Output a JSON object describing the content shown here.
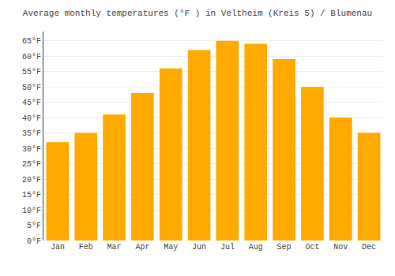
{
  "chart_data": {
    "type": "bar",
    "title": "Average monthly temperatures (°F ) in Veltheim (Kreis 5) / Blumenau",
    "categories": [
      "Jan",
      "Feb",
      "Mar",
      "Apr",
      "May",
      "Jun",
      "Jul",
      "Aug",
      "Sep",
      "Oct",
      "Nov",
      "Dec"
    ],
    "values": [
      32,
      35,
      41,
      48,
      56,
      62,
      65,
      64,
      59,
      50,
      40,
      35
    ],
    "color": "#FFAA00",
    "ylim": [
      0,
      68
    ],
    "yticks": [
      {
        "value": 0,
        "label": "0°F"
      },
      {
        "value": 5,
        "label": "5°F"
      },
      {
        "value": 10,
        "label": "10°F"
      },
      {
        "value": 15,
        "label": "15°F"
      },
      {
        "value": 20,
        "label": "20°F"
      },
      {
        "value": 25,
        "label": "25°F"
      },
      {
        "value": 30,
        "label": "30°F"
      },
      {
        "value": 35,
        "label": "35°F"
      },
      {
        "value": 40,
        "label": "40°F"
      },
      {
        "value": 45,
        "label": "45°F"
      },
      {
        "value": 50,
        "label": "50°F"
      },
      {
        "value": 55,
        "label": "55°F"
      },
      {
        "value": 60,
        "label": "60°F"
      },
      {
        "value": 65,
        "label": "65°F"
      }
    ],
    "grid": true
  }
}
